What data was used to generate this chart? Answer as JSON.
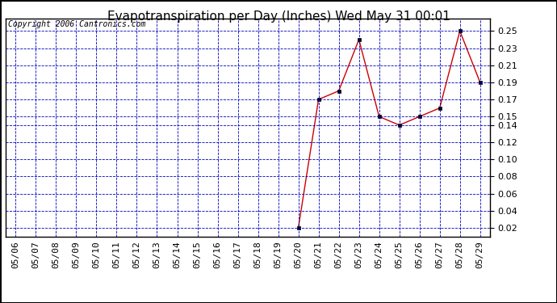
{
  "title": "Evapotranspiration per Day (Inches) Wed May 31 00:01",
  "copyright": "Copyright 2006 Cantronics.com",
  "background_color": "#ffffff",
  "plot_bg_color": "#ffffff",
  "line_color": "#cc0000",
  "marker_color": "#000000",
  "grid_color": "#0000bb",
  "dates": [
    "05/06",
    "05/07",
    "05/08",
    "05/09",
    "05/10",
    "05/11",
    "05/12",
    "05/13",
    "05/14",
    "05/15",
    "05/16",
    "05/17",
    "05/18",
    "05/19",
    "05/20",
    "05/21",
    "05/22",
    "05/23",
    "05/24",
    "05/25",
    "05/26",
    "05/27",
    "05/28",
    "05/29"
  ],
  "values": [
    null,
    null,
    null,
    null,
    null,
    null,
    null,
    null,
    null,
    null,
    null,
    null,
    null,
    null,
    0.02,
    0.17,
    0.18,
    0.24,
    0.15,
    0.14,
    0.15,
    0.16,
    0.25,
    0.19
  ],
  "ylim": [
    0.01,
    0.265
  ],
  "yticks": [
    0.02,
    0.04,
    0.06,
    0.08,
    0.1,
    0.12,
    0.14,
    0.15,
    0.17,
    0.19,
    0.21,
    0.23,
    0.25
  ],
  "title_fontsize": 11,
  "copyright_fontsize": 7,
  "tick_fontsize": 8,
  "outer_border_color": "#000000"
}
